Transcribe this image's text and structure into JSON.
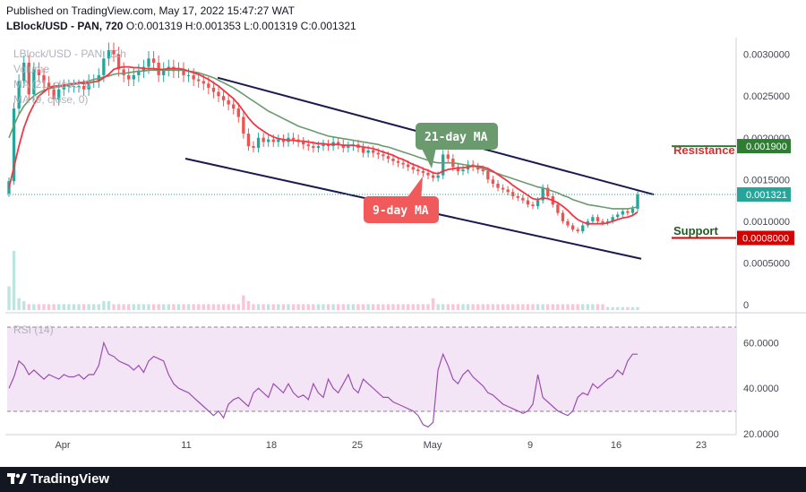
{
  "header": {
    "published": "Published on TradingView.com, May 17, 2022 15:47:27 WAT",
    "symbol_line": "LBlock/USD - PAN, 720",
    "ohlc": "O:0.001319 H:0.001353 L:0.001319 C:0.001321"
  },
  "overlay_labels": {
    "symbol": "LBlock/USD - PAN, 12h",
    "volume": "Volume",
    "ma21": "MA (21, close, 0",
    "ma9": "MA (9, close, 0)",
    "rsi": "RSI (14)"
  },
  "annotations": {
    "ma21_callout": "21-day MA",
    "ma9_callout": "9-day MA",
    "resistance_label": "Resistance",
    "support_label": "Support",
    "resistance_value": "0.001900",
    "support_value": "0.0008000",
    "last_price": "0.001321"
  },
  "colors": {
    "up": "#26a69a",
    "down": "#ef5350",
    "ma9": "#f23645",
    "ma21": "#6a9a6e",
    "channel": "#1a1a4e",
    "rsi": "#9c4fb0",
    "rsi_band": "#f3e5f5",
    "resistance": "#2e7d32",
    "support": "#d50000",
    "last": "#26a69a"
  },
  "footer": {
    "brand": "TradingView"
  },
  "chart_data": {
    "type": "candlestick",
    "x_tick_labels": [
      "Apr",
      "11",
      "18",
      "25",
      "May",
      "9",
      "16",
      "23"
    ],
    "price_axis": {
      "ylim": [
        0,
        0.0032
      ],
      "ticks": [
        "0.0030000",
        "0.0025000",
        "0.0020000",
        "0.0015000",
        "0.0010000",
        "0.0005000",
        "0"
      ]
    },
    "rsi_axis": {
      "ylim": [
        20,
        72
      ],
      "ticks": [
        "60.0000",
        "40.0000",
        "20.0000"
      ],
      "bands": [
        70,
        30
      ]
    },
    "closes": [
      0.00148,
      0.00235,
      0.00268,
      0.0029,
      0.00252,
      0.00282,
      0.00275,
      0.00266,
      0.00258,
      0.00246,
      0.00258,
      0.00262,
      0.00262,
      0.00262,
      0.00262,
      0.00258,
      0.00268,
      0.00268,
      0.00275,
      0.00295,
      0.00305,
      0.003,
      0.00282,
      0.00275,
      0.0027,
      0.00275,
      0.0028,
      0.00285,
      0.00295,
      0.0029,
      0.00275,
      0.00282,
      0.00285,
      0.0028,
      0.00282,
      0.00275,
      0.00275,
      0.0027,
      0.00268,
      0.00265,
      0.0026,
      0.00255,
      0.0025,
      0.00245,
      0.0024,
      0.00235,
      0.00225,
      0.00205,
      0.0019,
      0.00188,
      0.002,
      0.00195,
      0.00198,
      0.00195,
      0.00198,
      0.00195,
      0.002,
      0.00198,
      0.00195,
      0.00192,
      0.0019,
      0.00188,
      0.0019,
      0.00192,
      0.0019,
      0.00195,
      0.00192,
      0.00188,
      0.0019,
      0.00192,
      0.00188,
      0.00182,
      0.00185,
      0.00182,
      0.0018,
      0.00178,
      0.00175,
      0.00172,
      0.0017,
      0.00168,
      0.00165,
      0.00162,
      0.0016,
      0.00158,
      0.00155,
      0.00152,
      0.00155,
      0.0018,
      0.00175,
      0.00165,
      0.0016,
      0.00162,
      0.00168,
      0.00165,
      0.00162,
      0.0016,
      0.0015,
      0.00145,
      0.0014,
      0.00138,
      0.00135,
      0.0013,
      0.00128,
      0.00125,
      0.0012,
      0.00118,
      0.00125,
      0.0014,
      0.0013,
      0.0012,
      0.0011,
      0.001,
      0.00095,
      0.0009,
      0.00088,
      0.00095,
      0.001,
      0.00105,
      0.001,
      0.00098,
      0.001,
      0.00105,
      0.00108,
      0.00112,
      0.0011,
      0.00115,
      0.00132
    ],
    "ma9": [
      0.0014,
      0.00165,
      0.0019,
      0.00212,
      0.00228,
      0.0024,
      0.0025,
      0.00255,
      0.0026,
      0.00262,
      0.00262,
      0.00263,
      0.00264,
      0.00265,
      0.00266,
      0.00265,
      0.00266,
      0.00267,
      0.00268,
      0.00272,
      0.00276,
      0.00282,
      0.00284,
      0.00285,
      0.00285,
      0.00284,
      0.00284,
      0.00283,
      0.00283,
      0.00283,
      0.00282,
      0.00282,
      0.00283,
      0.00283,
      0.00283,
      0.00282,
      0.0028,
      0.00278,
      0.00276,
      0.00273,
      0.0027,
      0.00266,
      0.00262,
      0.00257,
      0.00252,
      0.00247,
      0.0024,
      0.00232,
      0.00224,
      0.00217,
      0.00212,
      0.00208,
      0.00204,
      0.00201,
      0.00199,
      0.00198,
      0.00197,
      0.00197,
      0.00196,
      0.00196,
      0.00195,
      0.00194,
      0.00193,
      0.00193,
      0.00192,
      0.00192,
      0.00192,
      0.00191,
      0.00191,
      0.00191,
      0.0019,
      0.00189,
      0.00188,
      0.00187,
      0.00185,
      0.00183,
      0.00181,
      0.00179,
      0.00176,
      0.00174,
      0.00171,
      0.00168,
      0.00166,
      0.00163,
      0.00161,
      0.00158,
      0.00157,
      0.0016,
      0.00162,
      0.00163,
      0.00164,
      0.00164,
      0.00165,
      0.00166,
      0.00166,
      0.00165,
      0.00163,
      0.0016,
      0.00156,
      0.00152,
      0.00148,
      0.00143,
      0.00139,
      0.00135,
      0.00131,
      0.00127,
      0.00126,
      0.00128,
      0.00127,
      0.00125,
      0.00122,
      0.00118,
      0.00113,
      0.00107,
      0.00102,
      0.00099,
      0.00097,
      0.00097,
      0.00097,
      0.00097,
      0.00098,
      0.001,
      0.00102,
      0.00104,
      0.00105,
      0.00107,
      0.00111
    ],
    "ma21": [
      0.002,
      0.00215,
      0.00228,
      0.00238,
      0.00245,
      0.0025,
      0.00254,
      0.00257,
      0.00259,
      0.0026,
      0.00261,
      0.00262,
      0.00263,
      0.00264,
      0.00266,
      0.00267,
      0.00268,
      0.0027,
      0.00271,
      0.00273,
      0.00274,
      0.00276,
      0.00277,
      0.00277,
      0.00278,
      0.00279,
      0.0028,
      0.0028,
      0.00281,
      0.00281,
      0.00281,
      0.00281,
      0.00281,
      0.00281,
      0.00281,
      0.00281,
      0.0028,
      0.00279,
      0.00278,
      0.00276,
      0.00274,
      0.00272,
      0.00269,
      0.00266,
      0.00263,
      0.0026,
      0.00256,
      0.00252,
      0.00248,
      0.00244,
      0.0024,
      0.00236,
      0.00232,
      0.00229,
      0.00226,
      0.00223,
      0.0022,
      0.00217,
      0.00214,
      0.00212,
      0.0021,
      0.00208,
      0.00206,
      0.00204,
      0.00202,
      0.00201,
      0.002,
      0.00199,
      0.00198,
      0.00197,
      0.00196,
      0.00195,
      0.00194,
      0.00193,
      0.00192,
      0.0019,
      0.00189,
      0.00187,
      0.00185,
      0.00183,
      0.00181,
      0.00179,
      0.00177,
      0.00175,
      0.00173,
      0.00171,
      0.0017,
      0.0017,
      0.0017,
      0.0017,
      0.00169,
      0.00168,
      0.00167,
      0.00166,
      0.00165,
      0.00163,
      0.00161,
      0.00159,
      0.00157,
      0.00155,
      0.00153,
      0.00151,
      0.00149,
      0.00147,
      0.00145,
      0.00143,
      0.00141,
      0.0014,
      0.00138,
      0.00136,
      0.00134,
      0.00131,
      0.00129,
      0.00126,
      0.00124,
      0.00122,
      0.0012,
      0.00119,
      0.00118,
      0.00117,
      0.00116,
      0.00115,
      0.00115,
      0.00115,
      0.00115,
      0.00116,
      0.00117
    ],
    "rsi": [
      40,
      45,
      52,
      50,
      46,
      48,
      46,
      44,
      46,
      45,
      44,
      46,
      45,
      45,
      46,
      44,
      46,
      46,
      50,
      60,
      55,
      54,
      52,
      51,
      50,
      48,
      50,
      47,
      52,
      54,
      53,
      52,
      46,
      42,
      40,
      39,
      38,
      36,
      34,
      32,
      30,
      28,
      30,
      27,
      33,
      35,
      36,
      34,
      32,
      38,
      40,
      38,
      36,
      42,
      40,
      38,
      42,
      38,
      36,
      37,
      35,
      42,
      38,
      36,
      44,
      40,
      38,
      42,
      46,
      40,
      38,
      44,
      42,
      40,
      38,
      36,
      36,
      34,
      33,
      32,
      31,
      30,
      28,
      24,
      23,
      25,
      48,
      55,
      50,
      44,
      42,
      46,
      48,
      45,
      43,
      41,
      38,
      37,
      35,
      33,
      32,
      31,
      30,
      29,
      30,
      33,
      46,
      36,
      34,
      32,
      30,
      29,
      28,
      30,
      36,
      38,
      37,
      42,
      40,
      42,
      44,
      45,
      48,
      46,
      52,
      55,
      55
    ],
    "volume": [
      8,
      20,
      4,
      3,
      2,
      2,
      2,
      2,
      2,
      2,
      2,
      2,
      2,
      2,
      2,
      2,
      2,
      2,
      2,
      3,
      3,
      2,
      2,
      2,
      2,
      2,
      2,
      2,
      2,
      2,
      2,
      2,
      2,
      2,
      2,
      2,
      2,
      2,
      2,
      2,
      2,
      2,
      2,
      2,
      2,
      2,
      2,
      5,
      3,
      2,
      2,
      2,
      2,
      2,
      2,
      2,
      2,
      2,
      2,
      2,
      2,
      2,
      2,
      2,
      2,
      2,
      2,
      2,
      2,
      2,
      2,
      2,
      2,
      2,
      2,
      2,
      2,
      2,
      2,
      2,
      2,
      2,
      2,
      2,
      2,
      4,
      2,
      2,
      2,
      2,
      2,
      2,
      2,
      2,
      2,
      2,
      2,
      2,
      2,
      2,
      2,
      2,
      2,
      2,
      2,
      2,
      2,
      2,
      2,
      2,
      2,
      2,
      2,
      2,
      2,
      2,
      2,
      2,
      2,
      2,
      1,
      1,
      1,
      1,
      1,
      1,
      1
    ],
    "channel_upper": [
      [
        0.00272,
        0.00132
      ]
    ],
    "channel_lower": [
      [
        0.00175,
        0.00055
      ]
    ],
    "levels": {
      "resistance": 0.0019,
      "support": 0.0008,
      "last": 0.001321
    }
  }
}
